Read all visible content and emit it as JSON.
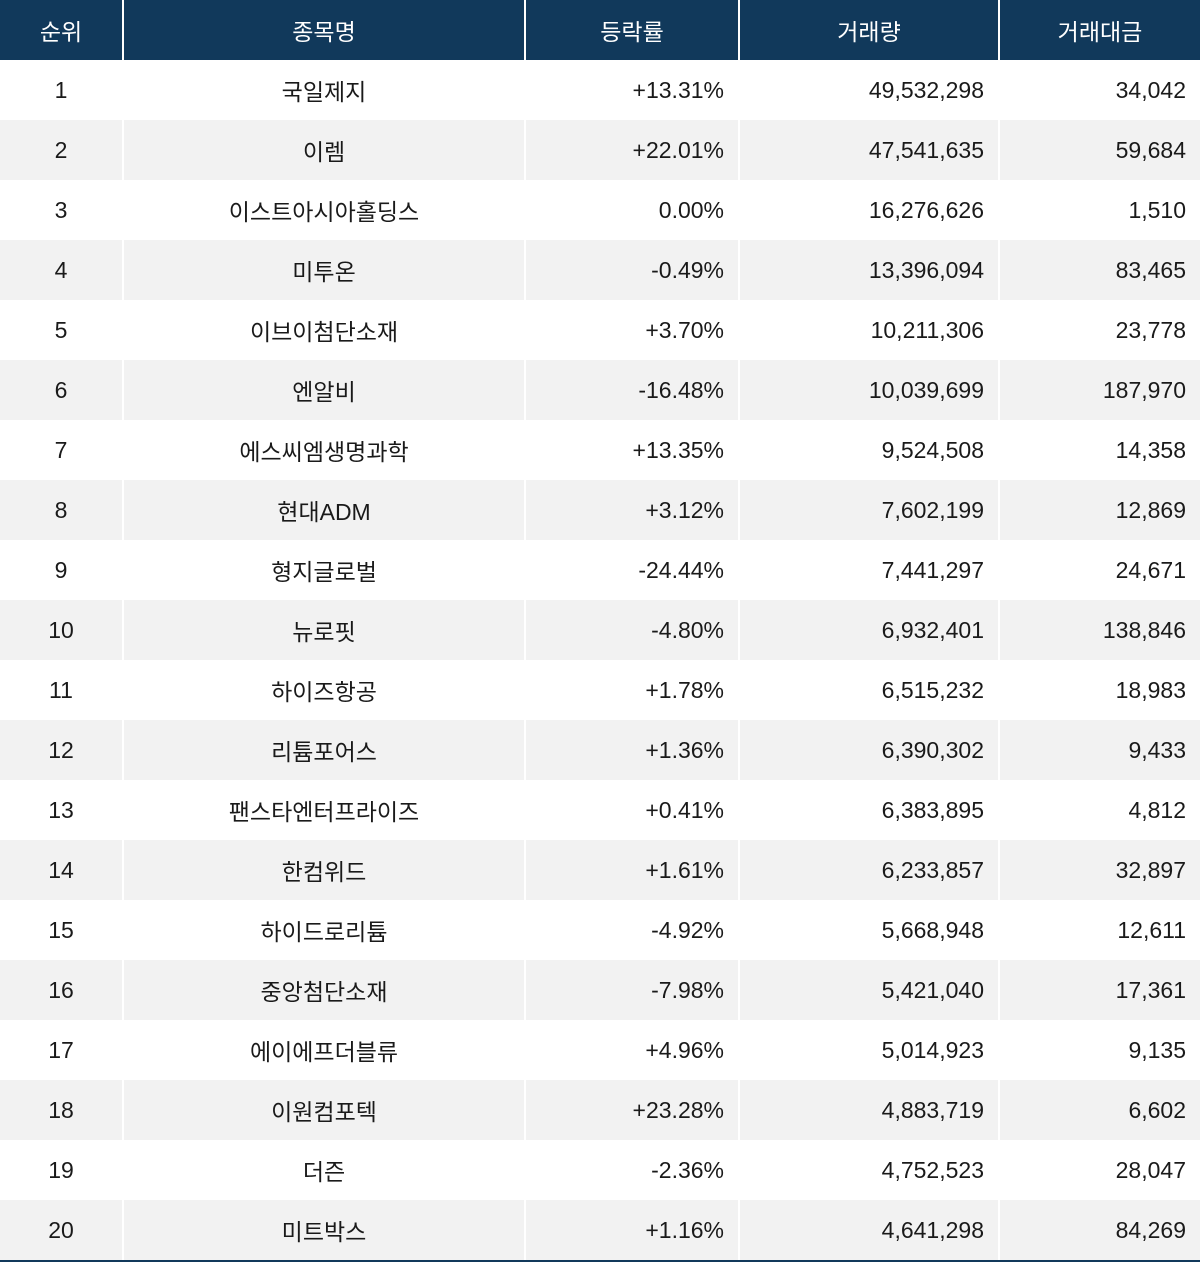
{
  "colors": {
    "header_bg": "#11395b",
    "header_text": "#ffffff",
    "row_bg": "#ffffff",
    "row_alt_bg": "#f2f2f2",
    "body_text": "#1a1a1a",
    "divider": "#ffffff"
  },
  "chart_data": {
    "type": "table",
    "columns": [
      "순위",
      "종목명",
      "등락률",
      "거래량",
      "거래대금"
    ],
    "rows": [
      [
        "1",
        "국일제지",
        "+13.31%",
        "49,532,298",
        "34,042"
      ],
      [
        "2",
        "이렘",
        "+22.01%",
        "47,541,635",
        "59,684"
      ],
      [
        "3",
        "이스트아시아홀딩스",
        "0.00%",
        "16,276,626",
        "1,510"
      ],
      [
        "4",
        "미투온",
        "-0.49%",
        "13,396,094",
        "83,465"
      ],
      [
        "5",
        "이브이첨단소재",
        "+3.70%",
        "10,211,306",
        "23,778"
      ],
      [
        "6",
        "엔알비",
        "-16.48%",
        "10,039,699",
        "187,970"
      ],
      [
        "7",
        "에스씨엠생명과학",
        "+13.35%",
        "9,524,508",
        "14,358"
      ],
      [
        "8",
        "현대ADM",
        "+3.12%",
        "7,602,199",
        "12,869"
      ],
      [
        "9",
        "형지글로벌",
        "-24.44%",
        "7,441,297",
        "24,671"
      ],
      [
        "10",
        "뉴로핏",
        "-4.80%",
        "6,932,401",
        "138,846"
      ],
      [
        "11",
        "하이즈항공",
        "+1.78%",
        "6,515,232",
        "18,983"
      ],
      [
        "12",
        "리튬포어스",
        "+1.36%",
        "6,390,302",
        "9,433"
      ],
      [
        "13",
        "팬스타엔터프라이즈",
        "+0.41%",
        "6,383,895",
        "4,812"
      ],
      [
        "14",
        "한컴위드",
        "+1.61%",
        "6,233,857",
        "32,897"
      ],
      [
        "15",
        "하이드로리튬",
        "-4.92%",
        "5,668,948",
        "12,611"
      ],
      [
        "16",
        "중앙첨단소재",
        "-7.98%",
        "5,421,040",
        "17,361"
      ],
      [
        "17",
        "에이에프더블류",
        "+4.96%",
        "5,014,923",
        "9,135"
      ],
      [
        "18",
        "이원컴포텍",
        "+23.28%",
        "4,883,719",
        "6,602"
      ],
      [
        "19",
        "더즌",
        "-2.36%",
        "4,752,523",
        "28,047"
      ],
      [
        "20",
        "미트박스",
        "+1.16%",
        "4,641,298",
        "84,269"
      ]
    ]
  }
}
